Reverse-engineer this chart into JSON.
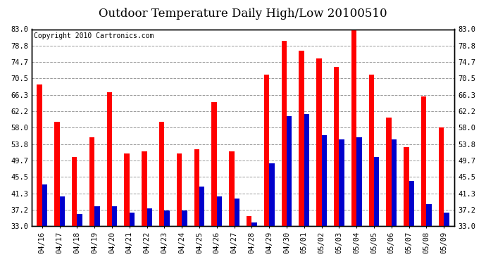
{
  "title": "Outdoor Temperature Daily High/Low 20100510",
  "copyright": "Copyright 2010 Cartronics.com",
  "dates": [
    "04/16",
    "04/17",
    "04/18",
    "04/19",
    "04/20",
    "04/21",
    "04/22",
    "04/23",
    "04/24",
    "04/25",
    "04/26",
    "04/27",
    "04/28",
    "04/29",
    "04/30",
    "05/01",
    "05/02",
    "05/03",
    "05/04",
    "05/05",
    "05/06",
    "05/07",
    "05/08",
    "05/09"
  ],
  "highs": [
    69.0,
    59.5,
    50.5,
    55.5,
    67.0,
    51.5,
    52.0,
    59.5,
    51.5,
    52.5,
    64.5,
    52.0,
    35.5,
    71.5,
    80.0,
    77.5,
    75.5,
    73.5,
    83.5,
    71.5,
    60.5,
    53.0,
    66.0,
    58.0
  ],
  "lows": [
    43.5,
    40.5,
    36.0,
    38.0,
    38.0,
    36.5,
    37.5,
    37.0,
    37.0,
    43.0,
    40.5,
    40.0,
    34.0,
    49.0,
    61.0,
    61.5,
    56.0,
    55.0,
    55.5,
    50.5,
    55.0,
    44.5,
    38.5,
    36.5
  ],
  "high_color": "#ff0000",
  "low_color": "#0000cc",
  "bg_color": "#ffffff",
  "plot_bg_color": "#ffffff",
  "grid_color": "#999999",
  "ylim_min": 33.0,
  "ylim_max": 83.0,
  "yticks": [
    33.0,
    37.2,
    41.3,
    45.5,
    49.7,
    53.8,
    58.0,
    62.2,
    66.3,
    70.5,
    74.7,
    78.8,
    83.0
  ],
  "bar_width": 0.3,
  "title_fontsize": 12,
  "tick_fontsize": 7.5,
  "copyright_fontsize": 7
}
